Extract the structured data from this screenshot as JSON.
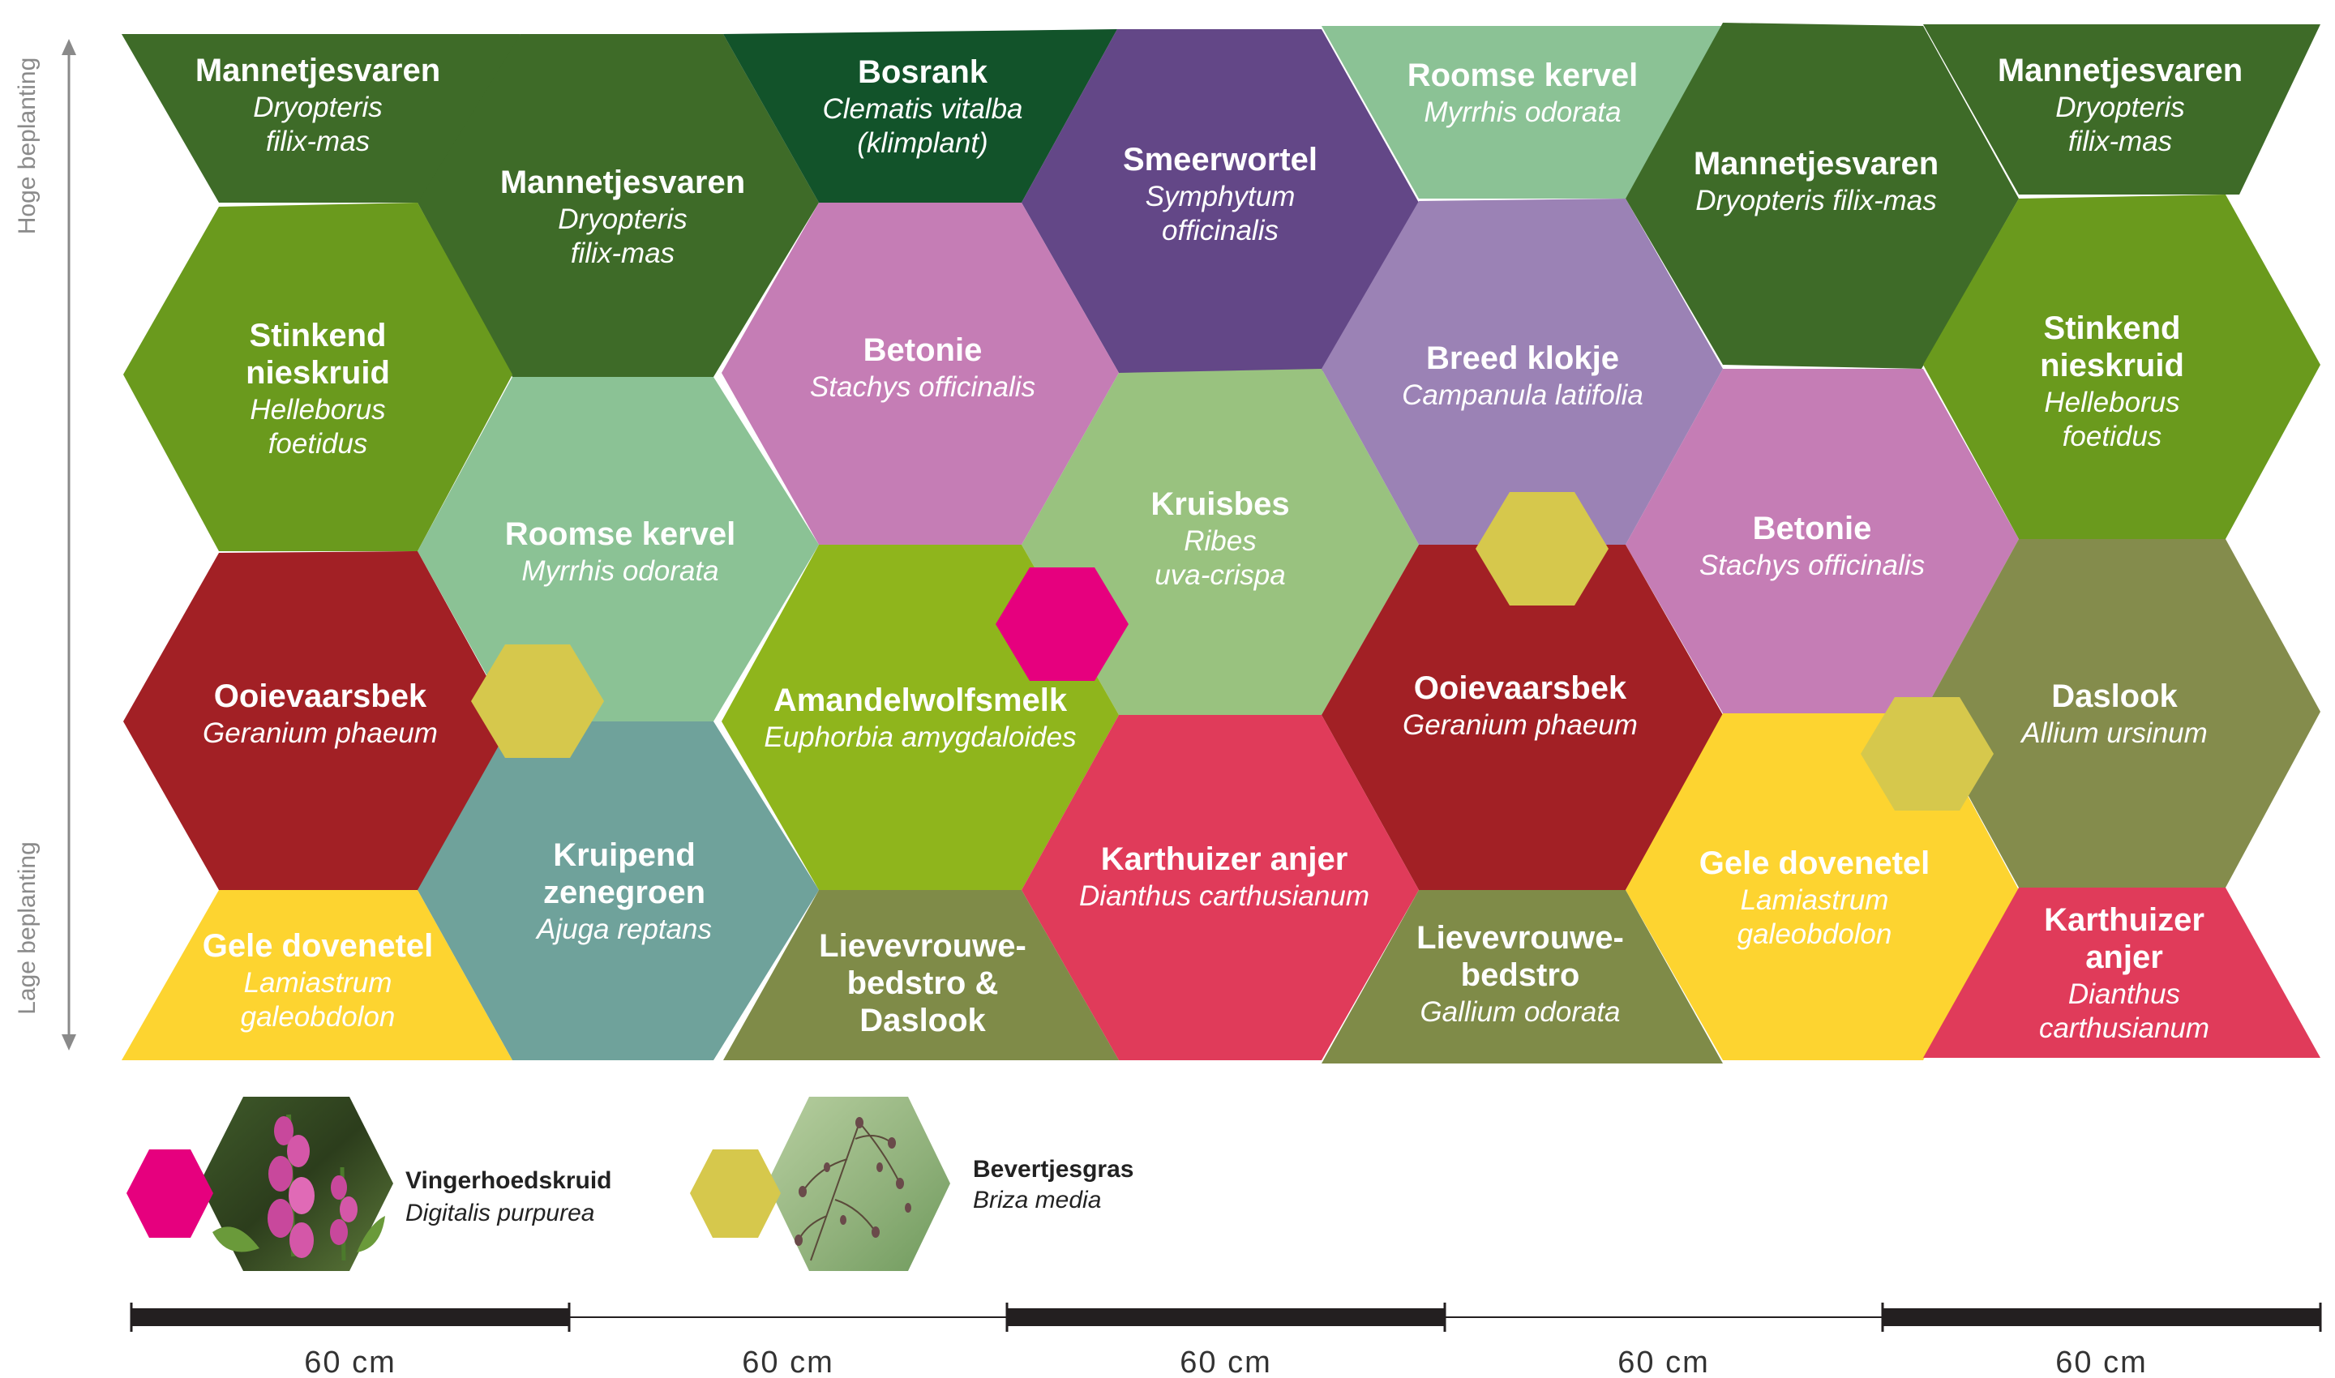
{
  "axis": {
    "top_label": "Hoge beplanting",
    "bottom_label": "Lage beplanting",
    "color": "#8a8a8a"
  },
  "colors": {
    "dark_green": "#3e6b28",
    "forest_green": "#12532a",
    "leaf_green": "#6a9a1d",
    "mint_green": "#8bc295",
    "sage_green": "#99c27f",
    "lime_green": "#8fb51c",
    "purple": "#634787",
    "lilac": "#9b82b5",
    "orchid": "#c57db5",
    "dark_red": "#a22025",
    "crimson": "#e03b5a",
    "yellow": "#fdd430",
    "olive": "#7f8b48",
    "olive_light": "#848c4c",
    "teal": "#6fa29b",
    "magenta": "#e6007e",
    "mustard": "#d6c84c"
  },
  "plants": [
    {
      "id": "p1",
      "common": [
        "Mannetjesvaren"
      ],
      "scientific": [
        "Dryopteris",
        "filix-mas"
      ],
      "color": "#3e6b28"
    },
    {
      "id": "p2",
      "common": [
        "Mannetjesvaren"
      ],
      "scientific": [
        "Dryopteris",
        "filix-mas"
      ],
      "color": "#3e6b28"
    },
    {
      "id": "p3",
      "common": [
        "Bosrank"
      ],
      "scientific": [
        "Clematis vitalba",
        "(klimplant)"
      ],
      "color": "#12532a"
    },
    {
      "id": "p4",
      "common": [
        "Smeerwortel"
      ],
      "scientific": [
        "Symphytum",
        "officinalis"
      ],
      "color": "#634787"
    },
    {
      "id": "p5",
      "common": [
        "Roomse kervel"
      ],
      "scientific": [
        "Myrrhis odorata"
      ],
      "color": "#8bc295"
    },
    {
      "id": "p6",
      "common": [
        "Mannetjesvaren"
      ],
      "scientific": [
        "Dryopteris filix-mas"
      ],
      "color": "#3e6b28"
    },
    {
      "id": "p7",
      "common": [
        "Mannetjesvaren"
      ],
      "scientific": [
        "Dryopteris",
        "filix-mas"
      ],
      "color": "#3e6b28"
    },
    {
      "id": "p8",
      "common": [
        "Stinkend",
        "nieskruid"
      ],
      "scientific": [
        "Helleborus",
        "foetidus"
      ],
      "color": "#6a9a1d"
    },
    {
      "id": "p9",
      "common": [
        "Betonie"
      ],
      "scientific": [
        "Stachys officinalis"
      ],
      "color": "#c57db5"
    },
    {
      "id": "p10",
      "common": [
        "Breed klokje"
      ],
      "scientific": [
        "Campanula latifolia"
      ],
      "color": "#9b82b5"
    },
    {
      "id": "p11",
      "common": [
        "Stinkend",
        "nieskruid"
      ],
      "scientific": [
        "Helleborus",
        "foetidus"
      ],
      "color": "#6a9a1d"
    },
    {
      "id": "p12",
      "common": [
        "Roomse kervel"
      ],
      "scientific": [
        "Myrrhis odorata"
      ],
      "color": "#8bc295"
    },
    {
      "id": "p13",
      "common": [
        "Kruisbes"
      ],
      "scientific": [
        "Ribes",
        "uva-crispa"
      ],
      "color": "#99c27f"
    },
    {
      "id": "p14",
      "common": [
        "Betonie"
      ],
      "scientific": [
        "Stachys officinalis"
      ],
      "color": "#c57db5"
    },
    {
      "id": "p15",
      "common": [
        "Ooievaarsbek"
      ],
      "scientific": [
        "Geranium phaeum"
      ],
      "color": "#a22025"
    },
    {
      "id": "p16",
      "common": [
        "Amandelwolfsmelk"
      ],
      "scientific": [
        "Euphorbia amygdaloides"
      ],
      "color": "#8fb51c"
    },
    {
      "id": "p17",
      "common": [
        "Ooievaarsbek"
      ],
      "scientific": [
        "Geranium phaeum"
      ],
      "color": "#a22025"
    },
    {
      "id": "p18",
      "common": [
        "Daslook"
      ],
      "scientific": [
        "Allium ursinum"
      ],
      "color": "#848c4c"
    },
    {
      "id": "p19",
      "common": [
        "Kruipend",
        "zenegroen"
      ],
      "scientific": [
        "Ajuga reptans"
      ],
      "color": "#6fa29b"
    },
    {
      "id": "p20",
      "common": [
        "Karthuizer anjer"
      ],
      "scientific": [
        "Dianthus carthusianum"
      ],
      "color": "#e03b5a"
    },
    {
      "id": "p21",
      "common": [
        "Gele dovenetel"
      ],
      "scientific": [
        "Lamiastrum",
        "galeobdolon"
      ],
      "color": "#fdd430"
    },
    {
      "id": "p22",
      "common": [
        "Gele dovenetel"
      ],
      "scientific": [
        "Lamiastrum",
        "galeobdolon"
      ],
      "color": "#fdd430"
    },
    {
      "id": "p23",
      "common": [
        "Lievevrouwe-",
        "bedstro &",
        "Daslook"
      ],
      "scientific": [],
      "color": "#7f8b48"
    },
    {
      "id": "p24",
      "common": [
        "Lievevrouwe-",
        "bedstro"
      ],
      "scientific": [
        "Gallium odorata"
      ],
      "color": "#7f8b48"
    },
    {
      "id": "p25",
      "common": [
        "Karthuizer",
        "anjer"
      ],
      "scientific": [
        "Dianthus",
        "carthusianum"
      ],
      "color": "#e03b5a"
    }
  ],
  "accents": [
    {
      "id": "a1",
      "plant": "Vingerhoedskruid",
      "color": "#e6007e"
    },
    {
      "id": "a2",
      "plant": "Bevertjesgras",
      "color": "#d6c84c"
    },
    {
      "id": "a3",
      "plant": "Bevertjesgras",
      "color": "#d6c84c"
    },
    {
      "id": "a4",
      "plant": "Bevertjesgras",
      "color": "#d6c84c"
    }
  ],
  "legend": [
    {
      "id": "vinger",
      "common": "Vingerhoedskruid",
      "scientific": "Digitalis purpurea",
      "color": "#e6007e",
      "photo_icon": "foxglove-photo"
    },
    {
      "id": "bever",
      "common": "Bevertjesgras",
      "scientific": "Briza media",
      "color": "#d6c84c",
      "photo_icon": "quaking-grass-photo"
    }
  ],
  "scale": {
    "segments": [
      {
        "label": "60 cm",
        "bold": true
      },
      {
        "label": "60 cm",
        "bold": false
      },
      {
        "label": "60 cm",
        "bold": true
      },
      {
        "label": "60 cm",
        "bold": false
      },
      {
        "label": "60 cm",
        "bold": true
      }
    ]
  }
}
